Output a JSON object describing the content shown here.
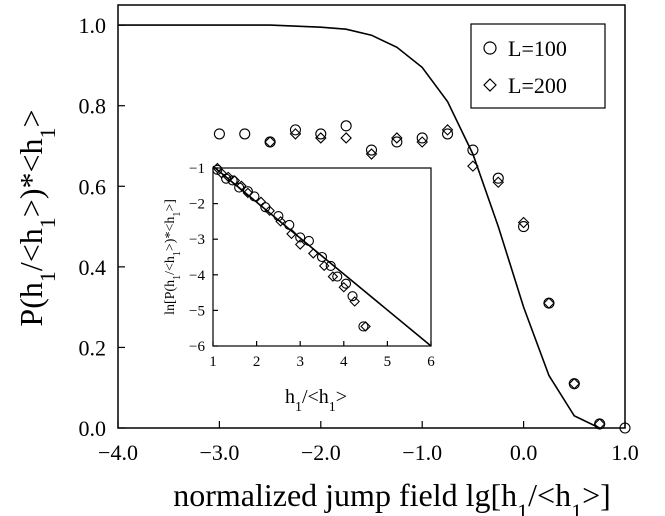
{
  "chart_data": [
    {
      "type": "scatter",
      "title": "",
      "xlabel": "normalized jump field lg[h1/<h1>]",
      "ylabel": "P(h1/<h1>)*<h1>",
      "xlim": [
        -4.0,
        1.0
      ],
      "ylim": [
        0.0,
        1.05
      ],
      "x_ticks": [
        "−4.0",
        "−3.0",
        "−2.0",
        "−1.0",
        "0.0",
        "1.0"
      ],
      "y_ticks": [
        "0.0",
        "0.2",
        "0.4",
        "0.6",
        "0.8",
        "1.0"
      ],
      "grid": false,
      "legend_position": "top-right",
      "series": [
        {
          "name": "L=100",
          "marker": "circle",
          "x": [
            -3.0,
            -2.75,
            -2.5,
            -2.25,
            -2.0,
            -1.75,
            -1.5,
            -1.25,
            -1.0,
            -0.75,
            -0.5,
            -0.25,
            0.0,
            0.25,
            0.5,
            0.75,
            1.0
          ],
          "y": [
            0.73,
            0.73,
            0.71,
            0.74,
            0.73,
            0.75,
            0.69,
            0.71,
            0.72,
            0.73,
            0.69,
            0.62,
            0.5,
            0.31,
            0.11,
            0.01,
            0.0
          ]
        },
        {
          "name": "L=200",
          "marker": "diamond",
          "x": [
            -2.5,
            -2.25,
            -2.0,
            -1.75,
            -1.5,
            -1.25,
            -1.0,
            -0.75,
            -0.5,
            -0.25,
            0.0,
            0.25,
            0.5,
            0.75
          ],
          "y": [
            0.71,
            0.73,
            0.72,
            0.72,
            0.68,
            0.72,
            0.71,
            0.74,
            0.65,
            0.61,
            0.51,
            0.31,
            0.11,
            0.01
          ]
        },
        {
          "name": "",
          "line": "solid",
          "x": [
            -4.0,
            -3.5,
            -3.0,
            -2.5,
            -2.0,
            -1.75,
            -1.5,
            -1.25,
            -1.0,
            -0.75,
            -0.5,
            -0.25,
            0.0,
            0.25,
            0.5,
            0.75
          ],
          "y": [
            1.0,
            1.0,
            1.0,
            1.0,
            0.995,
            0.99,
            0.975,
            0.945,
            0.895,
            0.81,
            0.68,
            0.5,
            0.3,
            0.13,
            0.03,
            0.0
          ]
        }
      ]
    },
    {
      "type": "scatter",
      "title": "",
      "xlabel": "h1/<h1>",
      "ylabel": "ln[P(h1/<h1>)*<h1>]",
      "xlim": [
        1,
        6
      ],
      "ylim": [
        -6,
        -1
      ],
      "x_ticks": [
        "1",
        "2",
        "3",
        "4",
        "5",
        "6"
      ],
      "y_ticks": [
        "−1",
        "−2",
        "−3",
        "−4",
        "−5",
        "−6"
      ],
      "series": [
        {
          "name": "",
          "marker": "circle",
          "x": [
            1.1,
            1.3,
            1.45,
            1.6,
            1.8,
            1.95,
            2.2,
            2.5,
            2.75,
            3.0,
            3.2,
            3.5,
            3.7,
            3.85,
            4.05,
            4.2,
            4.45
          ],
          "y": [
            -1.05,
            -1.3,
            -1.35,
            -1.55,
            -1.65,
            -1.8,
            -2.1,
            -2.35,
            -2.6,
            -2.95,
            -3.05,
            -3.5,
            -3.75,
            -4.05,
            -4.25,
            -4.6,
            -5.45
          ]
        },
        {
          "name": "",
          "marker": "diamond",
          "x": [
            1.1,
            1.2,
            1.35,
            1.5,
            1.65,
            1.8,
            2.1,
            2.3,
            2.55,
            2.8,
            3.0,
            3.3,
            3.55,
            3.75,
            4.0,
            4.25,
            4.5
          ],
          "y": [
            -1.0,
            -1.15,
            -1.25,
            -1.35,
            -1.5,
            -1.7,
            -1.95,
            -2.2,
            -2.5,
            -2.85,
            -3.15,
            -3.4,
            -3.75,
            -4.05,
            -4.35,
            -4.75,
            -5.45
          ]
        },
        {
          "name": "",
          "line": "solid",
          "x": [
            1.0,
            6.0
          ],
          "y": [
            -0.95,
            -6.0
          ]
        }
      ]
    }
  ]
}
